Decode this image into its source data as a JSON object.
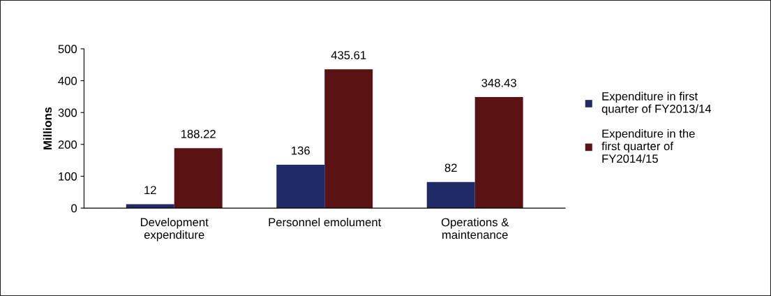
{
  "chart_data": {
    "type": "bar",
    "ylabel": "Millions",
    "categories": [
      "Development\nexpenditure",
      "Personnel emolument",
      "Operations &\nmaintenance"
    ],
    "series": [
      {
        "name": "Expenditure in first\nquarter of FY2013/14",
        "color": "#1f2a66",
        "values": [
          12,
          136,
          82
        ]
      },
      {
        "name": "Expenditure in the\nfirst quarter of\nFY2014/15",
        "color": "#5a1212",
        "values": [
          188.22,
          435.61,
          348.43
        ]
      }
    ],
    "ylim": [
      0,
      500
    ],
    "yticks": [
      0,
      100,
      200,
      300,
      400,
      500
    ],
    "data_labels": true,
    "legend": "right",
    "grid": false
  }
}
